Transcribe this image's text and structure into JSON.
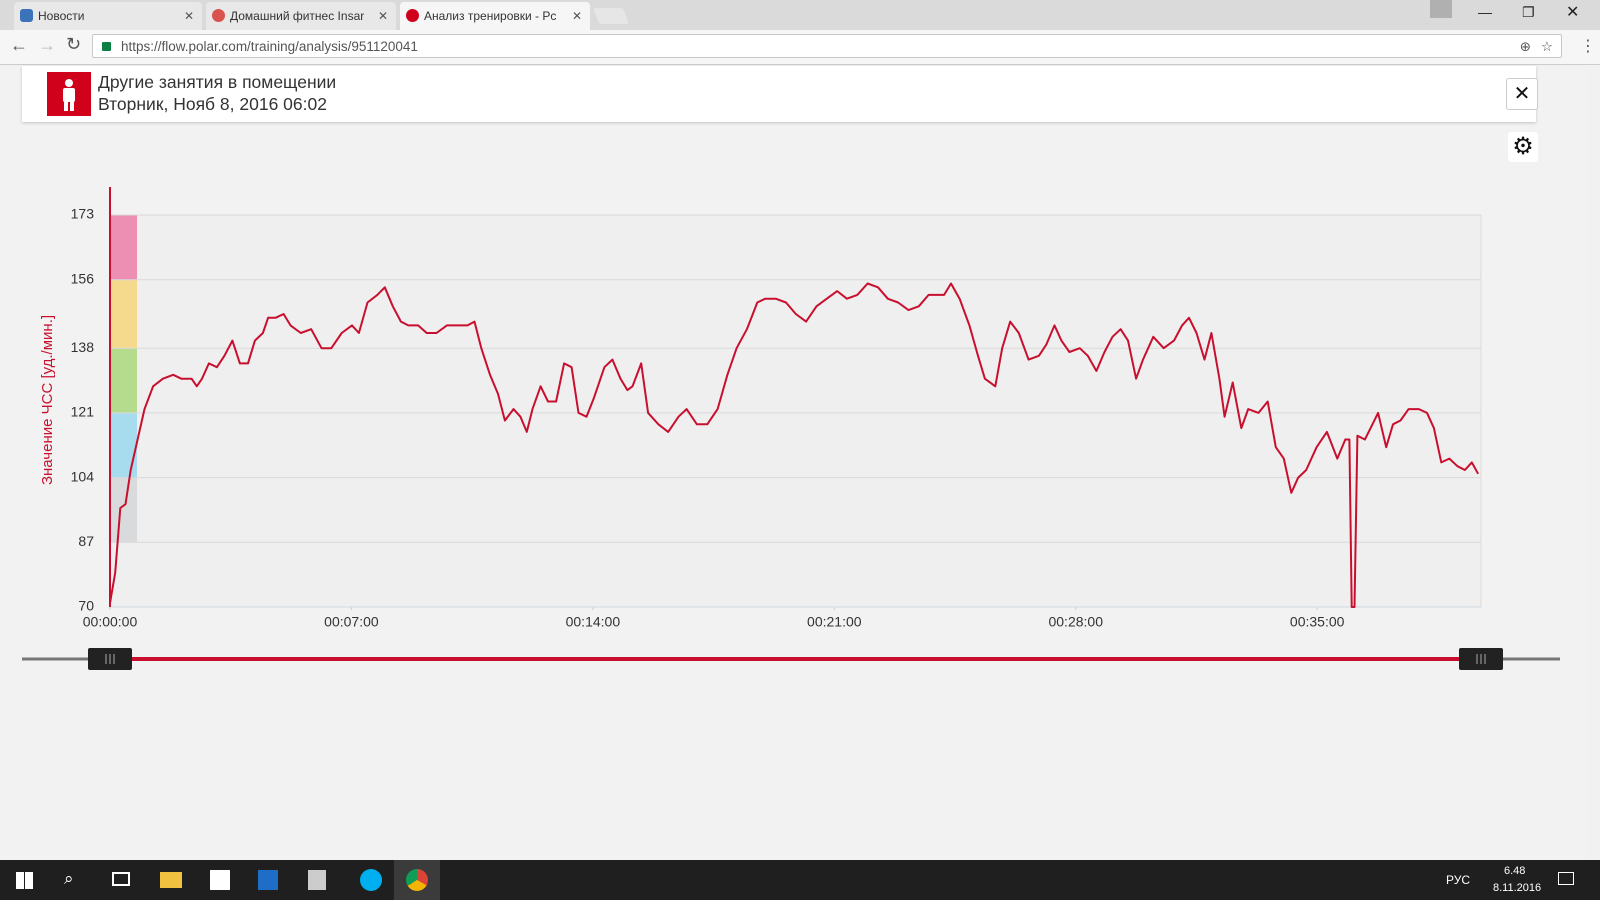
{
  "browser": {
    "tabs": [
      "Новости",
      "Домашний фитнес Insar",
      "Анализ тренировки - Pc"
    ],
    "url": "https://flow.polar.com/training/analysis/951120041"
  },
  "header": {
    "title": "Другие занятия в помещении",
    "subtitle": "Вторник, Нояб 8, 2016 06:02"
  },
  "taskbar": {
    "language": "РУС",
    "time": "6.48",
    "date": "8.11.2016"
  },
  "chart_data": {
    "type": "line",
    "ylabel": "Значение ЧСС [уд./мин.]",
    "color": "#c8102e",
    "zone_colors": [
      "#d9dadc",
      "#a6dcee",
      "#b4dc8c",
      "#f5d98c",
      "#ec8fb3"
    ],
    "grid": true,
    "x": [
      0,
      9,
      18,
      27,
      36,
      48,
      60,
      75,
      92,
      110,
      124,
      142,
      151,
      160,
      172,
      186,
      199,
      213,
      226,
      240,
      252,
      266,
      275,
      288,
      302,
      314,
      332,
      350,
      368,
      385,
      403,
      421,
      433,
      448,
      465,
      478,
      492,
      506,
      519,
      536,
      551,
      568,
      586,
      604,
      622,
      634,
      646,
      661,
      675,
      687,
      702,
      714,
      725,
      735,
      749,
      762,
      776,
      790,
      803,
      815,
      829,
      842,
      860,
      874,
      888,
      900,
      909,
      924,
      936,
      954,
      971,
      989,
      1003,
      1021,
      1039,
      1057,
      1074,
      1090,
      1108,
      1126,
      1140,
      1158,
      1176,
      1193,
      1211,
      1229,
      1247,
      1265,
      1282,
      1300,
      1318,
      1336,
      1353,
      1371,
      1389,
      1407,
      1424,
      1451,
      1463,
      1478,
      1495,
      1510,
      1522,
      1540,
      1552,
      1566,
      1581,
      1598,
      1616,
      1629,
      1643,
      1655,
      1669,
      1687,
      1701,
      1716,
      1730,
      1744,
      1758,
      1771,
      1785,
      1797,
      1815,
      1833,
      1851,
      1865,
      1877,
      1890,
      1904,
      1916,
      1930,
      1939,
      1953,
      1968,
      1980,
      1998,
      2014,
      2028,
      2042,
      2055,
      2067,
      2081,
      2099,
      2117,
      2135,
      2149,
      2156,
      2160,
      2165,
      2170,
      2183,
      2193,
      2206,
      2220,
      2232,
      2245,
      2259,
      2277,
      2291,
      2303,
      2316,
      2330,
      2344,
      2357,
      2369,
      2380
    ],
    "values": [
      71,
      79,
      96,
      97,
      106,
      114,
      122,
      128,
      130,
      131,
      130,
      130,
      128,
      130,
      134,
      133,
      136,
      140,
      134,
      134,
      140,
      142,
      146,
      146,
      147,
      144,
      142,
      143,
      138,
      138,
      142,
      144,
      142,
      150,
      152,
      154,
      149,
      145,
      144,
      144,
      142,
      142,
      144,
      144,
      144,
      145,
      138,
      131,
      126,
      119,
      122,
      120,
      116,
      122,
      128,
      124,
      124,
      134,
      133,
      121,
      120,
      125,
      133,
      135,
      130,
      127,
      128,
      134,
      121,
      118,
      116,
      120,
      122,
      118,
      118,
      122,
      131,
      138,
      143,
      150,
      151,
      151,
      150,
      147,
      145,
      149,
      151,
      153,
      151,
      152,
      155,
      154,
      151,
      150,
      148,
      149,
      152,
      152,
      155,
      151,
      144,
      136,
      130,
      128,
      138,
      145,
      142,
      135,
      136,
      139,
      144,
      140,
      137,
      138,
      136,
      132,
      137,
      141,
      143,
      140,
      130,
      135,
      141,
      138,
      140,
      144,
      146,
      142,
      135,
      142,
      130,
      120,
      129,
      117,
      122,
      121,
      124,
      112,
      109,
      100,
      104,
      106,
      112,
      116,
      109,
      114,
      114,
      70,
      70,
      115,
      114,
      117,
      121,
      112,
      118,
      119,
      122,
      122,
      121,
      117,
      108,
      109,
      107,
      106,
      108,
      105
    ],
    "xlim": [
      0,
      2385
    ],
    "xticks": [
      {
        "value": 0,
        "label": "00:00:00"
      },
      {
        "value": 420,
        "label": "00:07:00"
      },
      {
        "value": 840,
        "label": "00:14:00"
      },
      {
        "value": 1260,
        "label": "00:21:00"
      },
      {
        "value": 1680,
        "label": "00:28:00"
      },
      {
        "value": 2100,
        "label": "00:35:00"
      }
    ],
    "ylim": [
      70,
      173
    ],
    "yticks": [
      70,
      87,
      104,
      121,
      138,
      156,
      173
    ]
  }
}
